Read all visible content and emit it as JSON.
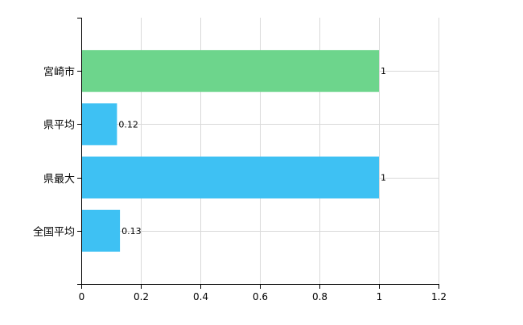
{
  "chart_data": {
    "type": "bar",
    "orientation": "horizontal",
    "categories": [
      "宮崎市",
      "県平均",
      "県最大",
      "全国平均"
    ],
    "values": [
      1,
      0.12,
      1,
      0.13
    ],
    "value_labels": [
      "1",
      "0.12",
      "1",
      "0.13"
    ],
    "bar_colors": [
      "#6dd58c",
      "#3ec1f3",
      "#3ec1f3",
      "#3ec1f3"
    ],
    "xlim": [
      0,
      1.2
    ],
    "x_ticks": [
      0,
      0.2,
      0.4,
      0.6,
      0.8,
      1,
      1.2
    ],
    "x_tick_labels": [
      "0",
      "0.2",
      "0.4",
      "0.6",
      "0.8",
      "1",
      "1.2"
    ],
    "grid": true,
    "legend": "none",
    "title": "",
    "xlabel": "",
    "ylabel": ""
  },
  "colors": {
    "grid": "#d9d9d9",
    "axis": "#000000",
    "text": "#000000"
  }
}
